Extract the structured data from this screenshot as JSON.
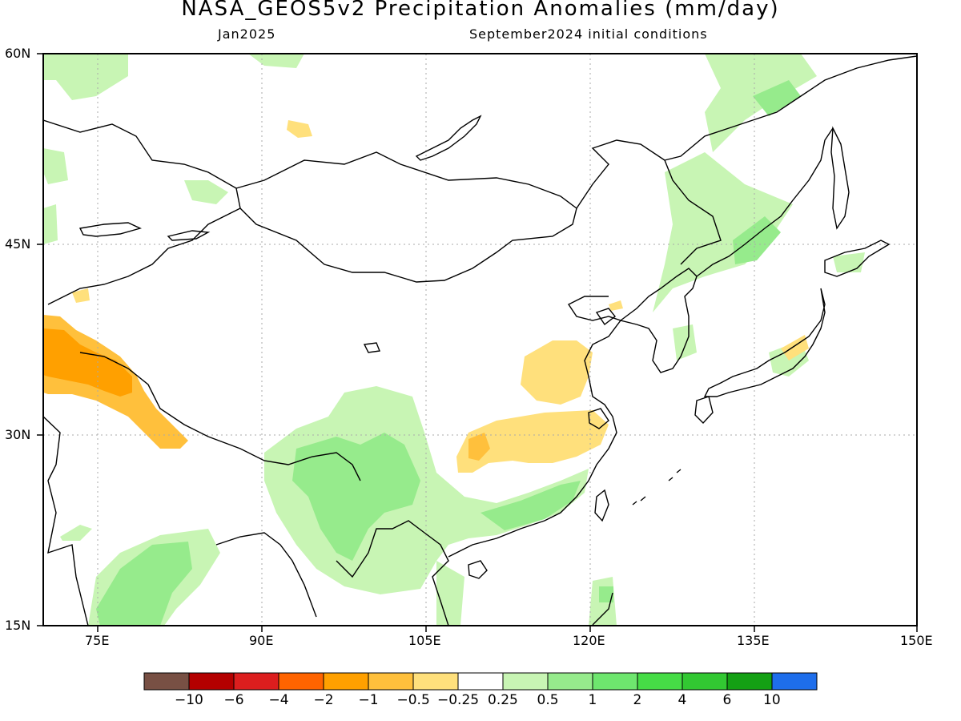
{
  "title": "NASA_GEOS5v2 Precipitation Anomalies (mm/day)",
  "subtitle_left": "Jan2025",
  "subtitle_right": "September2024 initial conditions",
  "lat_labels": [
    "60N",
    "45N",
    "30N",
    "15N"
  ],
  "lon_labels": [
    "75E",
    "90E",
    "105E",
    "120E",
    "135E",
    "150E"
  ],
  "colorbar": {
    "colors": [
      "#785044",
      "#b40000",
      "#dc1e1e",
      "#ff6400",
      "#ffa000",
      "#ffc03c",
      "#ffe07c",
      "#ffffff",
      "#c8f5b4",
      "#96eb8c",
      "#6ee66e",
      "#46dc46",
      "#32c832",
      "#14a014",
      "#1e6eeb"
    ],
    "labels": [
      "-10",
      "-6",
      "-4",
      "-2",
      "-1",
      "-0.5",
      "-0.25",
      "0.25",
      "0.5",
      "1",
      "2",
      "4",
      "6",
      "10"
    ]
  }
}
